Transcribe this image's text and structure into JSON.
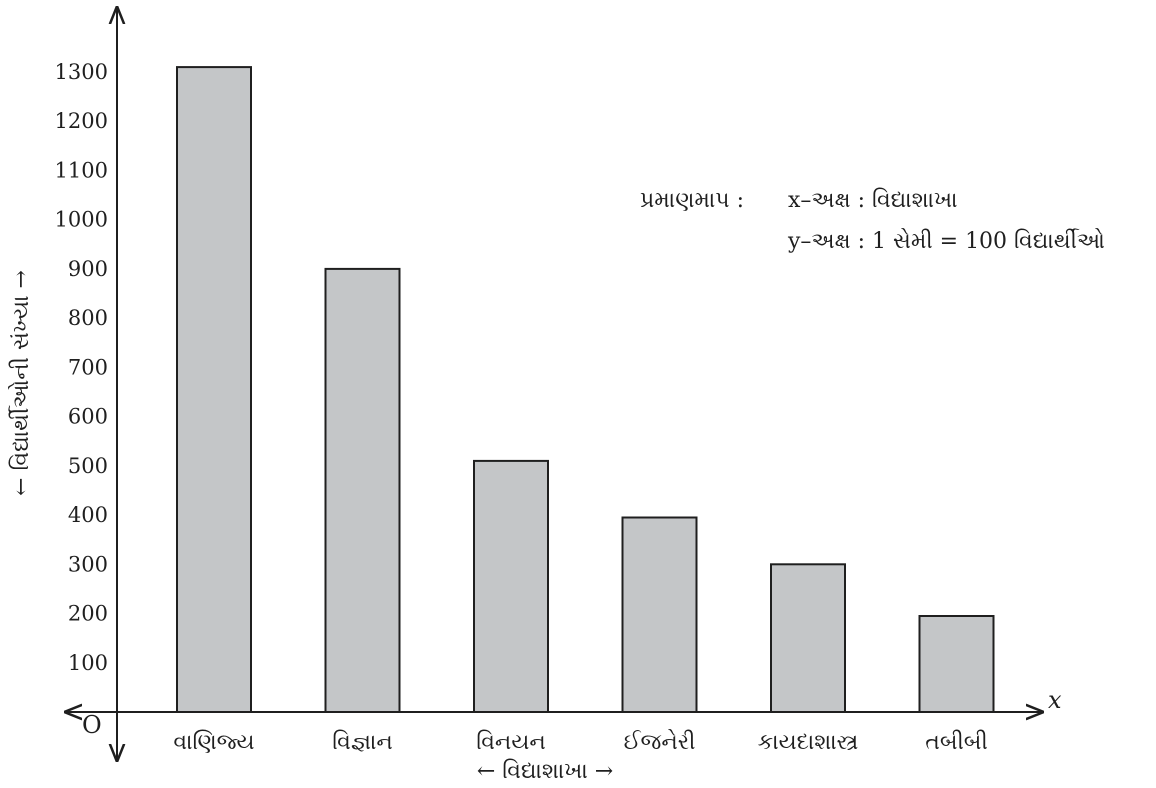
{
  "chart_data": {
    "type": "bar",
    "categories": [
      "વાણિજ્ય",
      "વિજ્ઞાન",
      "વિનયન",
      "ઈજનેરી",
      "કાયદાશાસ્ત્ર",
      "તબીબી"
    ],
    "values": [
      1310,
      900,
      510,
      395,
      300,
      195
    ],
    "xlabel": "← વિદ્યાશાખા →",
    "ylabel": "← વિદ્યાર્થીઓની સંખ્યા →",
    "ylim": [
      0,
      1300
    ],
    "yticks": [
      100,
      200,
      300,
      400,
      500,
      600,
      700,
      800,
      900,
      1000,
      1100,
      1200,
      1300
    ],
    "origin_label": "O",
    "x_axis_symbol": "x",
    "scale_note": {
      "title": "પ્રમાણમાપ :",
      "x_axis": "x–અક્ષ : વિદ્યાશાખા",
      "y_axis": "y–અક્ષ : 1 સેમી = 100 વિદ્યાર્થીઓ"
    },
    "grid": false,
    "bar_color": "#c4c6c8"
  }
}
